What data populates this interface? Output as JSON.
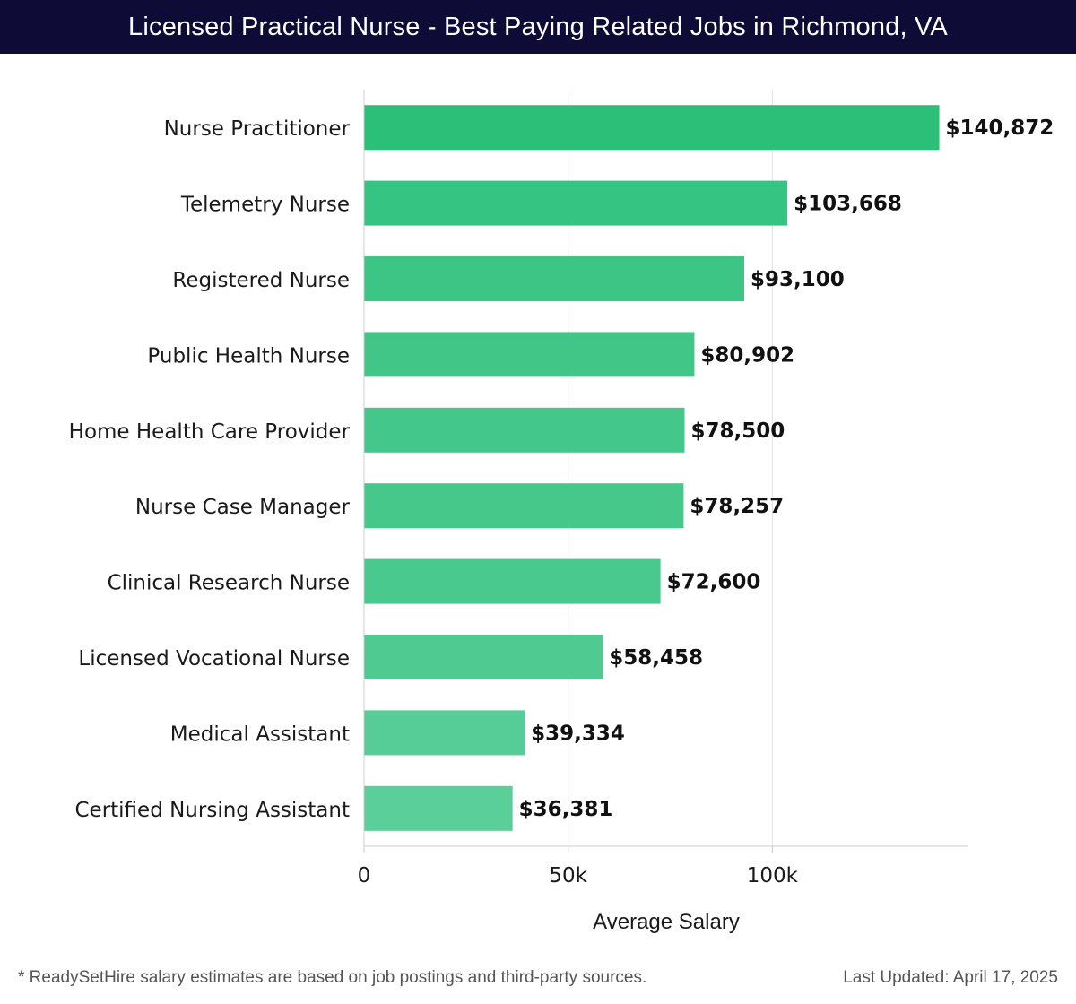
{
  "header": {
    "title": "Licensed Practical Nurse - Best Paying Related Jobs in Richmond, VA"
  },
  "chart_data": {
    "type": "bar",
    "orientation": "horizontal",
    "categories": [
      "Nurse Practitioner",
      "Telemetry Nurse",
      "Registered Nurse",
      "Public Health Nurse",
      "Home Health Care Provider",
      "Nurse Case Manager",
      "Clinical Research Nurse",
      "Licensed Vocational Nurse",
      "Medical Assistant",
      "Certified Nursing Assistant"
    ],
    "values": [
      140872,
      103668,
      93100,
      80902,
      78500,
      78257,
      72600,
      58458,
      39334,
      36381
    ],
    "value_labels": [
      "$140,872",
      "$103,668",
      "$93,100",
      "$80,902",
      "$78,500",
      "$78,257",
      "$72,600",
      "$58,458",
      "$39,334",
      "$36,381"
    ],
    "xlabel": "Average Salary",
    "ylabel": "",
    "xlim": [
      0,
      148000
    ],
    "xticks": [
      0,
      50000,
      100000
    ],
    "xtick_labels": [
      "0",
      "50k",
      "100k"
    ],
    "grid": "vertical",
    "bar_colors": [
      "#2bbf78",
      "#36c482",
      "#3cc585",
      "#42c688",
      "#44c78a",
      "#46c88b",
      "#4ac98e",
      "#4fcb91",
      "#56cd96",
      "#5acf99"
    ]
  },
  "footer": {
    "note": "* ReadySetHire salary estimates are based on job postings and third-party sources.",
    "updated": "Last Updated: April 17, 2025"
  }
}
